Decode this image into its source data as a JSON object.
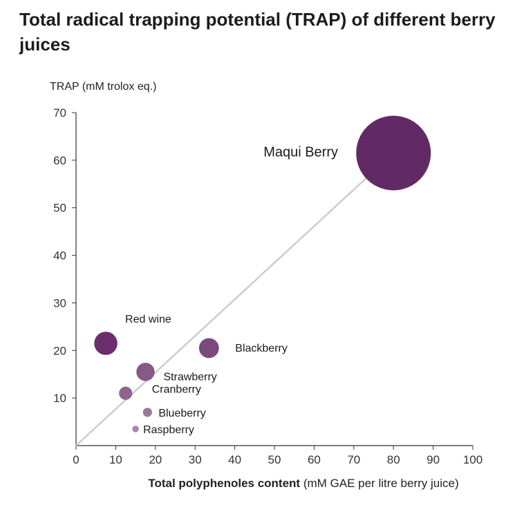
{
  "chart_data": {
    "type": "scatter",
    "title": "Total radical trapping potential (TRAP) of different berry juices",
    "ylabel": "TRAP (mM trolox eq.)",
    "xlabel_bold": "Total polyphenoles content",
    "xlabel_rest": " (mM GAE per litre berry juice)",
    "xlim": [
      0,
      100
    ],
    "ylim": [
      0,
      70
    ],
    "xticks": [
      0,
      10,
      20,
      30,
      40,
      50,
      60,
      70,
      80,
      90,
      100
    ],
    "yticks": [
      10,
      20,
      30,
      40,
      50,
      60,
      70
    ],
    "grid": false,
    "trendline": {
      "from": [
        0,
        0
      ],
      "to": [
        80,
        61.5
      ],
      "color": "#cccccc"
    },
    "points": [
      {
        "label": "Maqui Berry",
        "x": 80,
        "y": 61.5,
        "size": 9.0,
        "color": "#622a65"
      },
      {
        "label": "Red wine",
        "x": 7.5,
        "y": 21.5,
        "size": 2.8,
        "color": "#6b2f6d"
      },
      {
        "label": "Blackberry",
        "x": 33.5,
        "y": 20.5,
        "size": 2.4,
        "color": "#7a4a7c"
      },
      {
        "label": "Strawberry",
        "x": 17.5,
        "y": 15.5,
        "size": 2.2,
        "color": "#855a87"
      },
      {
        "label": "Cranberry",
        "x": 12.5,
        "y": 11,
        "size": 1.6,
        "color": "#8d6690"
      },
      {
        "label": "Blueberry",
        "x": 18,
        "y": 7,
        "size": 1.1,
        "color": "#9a7a9c"
      },
      {
        "label": "Raspberry",
        "x": 15,
        "y": 3.5,
        "size": 0.8,
        "color": "#a788a9"
      }
    ]
  }
}
